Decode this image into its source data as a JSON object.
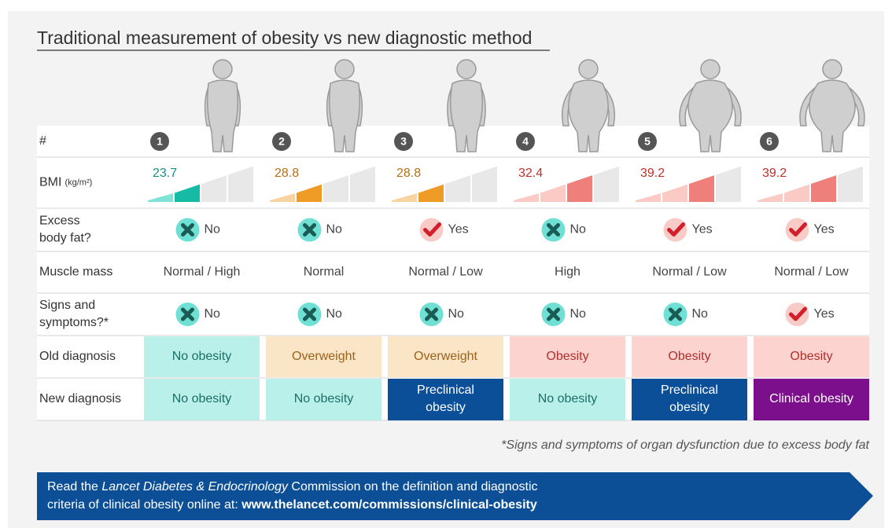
{
  "title": "Traditional measurement of obesity vs new diagnostic method",
  "rows": {
    "number": "#",
    "bmi": "BMI",
    "bmi_unit": "(kg/m²)",
    "excess_fat": [
      "Excess",
      "body fat?"
    ],
    "muscle_mass": "Muscle mass",
    "signs": [
      "Signs and",
      "symptoms?*"
    ],
    "old_diagnosis": "Old diagnosis",
    "new_diagnosis": "New diagnosis"
  },
  "columns": [
    {
      "number": 1,
      "bmi": 23.7,
      "excess_fat": "No",
      "muscle_mass": "Normal / High",
      "signs": "No",
      "old_diagnosis": "No obesity",
      "new_diagnosis": "No obesity"
    },
    {
      "number": 2,
      "bmi": 28.8,
      "excess_fat": "No",
      "muscle_mass": "Normal",
      "signs": "No",
      "old_diagnosis": "Overweight",
      "new_diagnosis": "No obesity"
    },
    {
      "number": 3,
      "bmi": 28.8,
      "excess_fat": "Yes",
      "muscle_mass": "Normal / Low",
      "signs": "No",
      "old_diagnosis": "Overweight",
      "new_diagnosis": [
        "Preclinical",
        "obesity"
      ]
    },
    {
      "number": 4,
      "bmi": 32.4,
      "excess_fat": "No",
      "muscle_mass": "High",
      "signs": "No",
      "old_diagnosis": "Obesity",
      "new_diagnosis": "No obesity"
    },
    {
      "number": 5,
      "bmi": 39.2,
      "excess_fat": "Yes",
      "muscle_mass": "Normal / Low",
      "signs": "No",
      "old_diagnosis": "Obesity",
      "new_diagnosis": [
        "Preclinical",
        "obesity"
      ]
    },
    {
      "number": 6,
      "bmi": 39.2,
      "excess_fat": "Yes",
      "muscle_mass": "Normal / Low",
      "signs": "Yes",
      "old_diagnosis": "Obesity",
      "new_diagnosis": "Clinical obesity"
    }
  ],
  "footnote": "*Signs and symptoms of organ dysfunction due to excess body fat",
  "banner": {
    "line1": [
      "Read the ",
      "Lancet Diabetes & Endocrinology",
      " Commission on the definition and diagnostic"
    ],
    "line2": [
      "criteria of clinical obesity online at: ",
      "www.thelancet.com/commissions/clinical-obesity"
    ]
  }
}
